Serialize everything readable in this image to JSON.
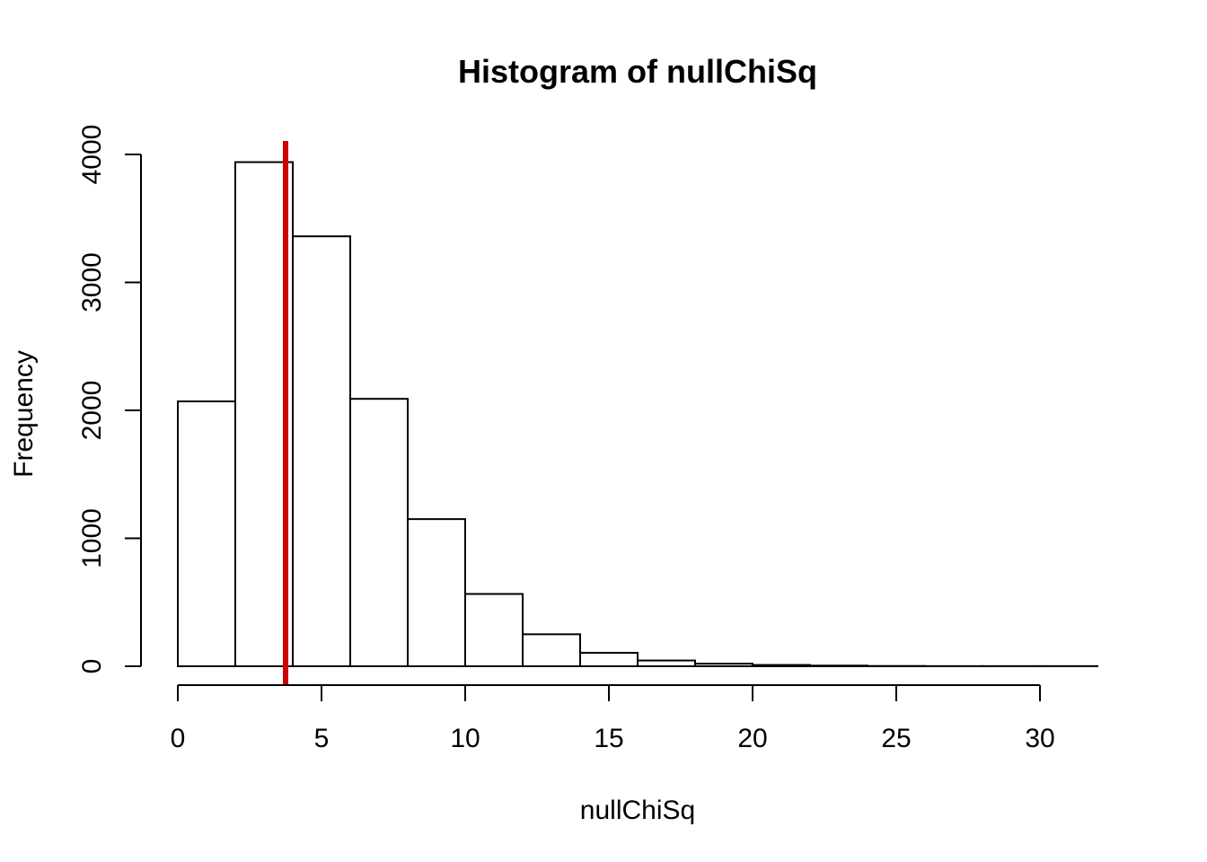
{
  "chart_data": {
    "type": "bar",
    "subtype": "histogram",
    "title": "Histogram of nullChiSq",
    "xlabel": "nullChiSq",
    "ylabel": "Frequency",
    "bin_edges": [
      0,
      2,
      4,
      6,
      8,
      10,
      12,
      14,
      16,
      18,
      20,
      22,
      24,
      26,
      28,
      30,
      32
    ],
    "values": [
      2070,
      3940,
      3360,
      2090,
      1150,
      565,
      250,
      105,
      45,
      20,
      10,
      5,
      2,
      1,
      1,
      1
    ],
    "xlim": [
      0,
      32
    ],
    "ylim": [
      0,
      4100
    ],
    "x_ticks": [
      0,
      5,
      10,
      15,
      20,
      25,
      30
    ],
    "x_tick_labels": [
      "0",
      "5",
      "10",
      "15",
      "20",
      "25",
      "30"
    ],
    "y_ticks": [
      0,
      1000,
      2000,
      3000,
      4000
    ],
    "y_tick_labels": [
      "0",
      "1000",
      "2000",
      "3000",
      "4000"
    ],
    "reference_line": {
      "x": 3.75,
      "color": "#cc0000",
      "orientation": "vertical"
    },
    "bar_fill": "#ffffff",
    "bar_stroke": "#000000",
    "grid": false,
    "legend": "none"
  }
}
